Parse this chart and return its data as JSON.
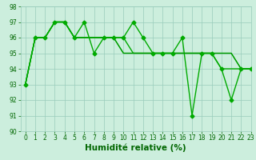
{
  "series": [
    {
      "x": [
        0,
        1,
        2,
        3,
        4,
        5,
        6,
        7,
        8,
        9,
        10,
        11,
        12,
        13,
        14,
        15,
        16,
        17,
        18,
        19,
        20,
        21,
        22,
        23
      ],
      "y": [
        93,
        96,
        96,
        97,
        97,
        96,
        97,
        95,
        96,
        96,
        96,
        97,
        96,
        95,
        95,
        95,
        96,
        91,
        95,
        95,
        94,
        92,
        94,
        94
      ],
      "color": "#00aa00",
      "marker": "D",
      "markersize": 2.5,
      "linewidth": 1.0
    },
    {
      "x": [
        0,
        1,
        2,
        3,
        4,
        5,
        6,
        7,
        8,
        9,
        10,
        11,
        12,
        13,
        14,
        15,
        16,
        17,
        18,
        19,
        20,
        21,
        22,
        23
      ],
      "y": [
        93,
        96,
        96,
        97,
        97,
        96,
        96,
        96,
        96,
        96,
        96,
        95,
        95,
        95,
        95,
        95,
        95,
        95,
        95,
        95,
        94,
        94,
        94,
        94
      ],
      "color": "#00aa00",
      "marker": null,
      "markersize": 0,
      "linewidth": 1.0
    },
    {
      "x": [
        0,
        1,
        2,
        3,
        4,
        5,
        6,
        7,
        8,
        9,
        10,
        11,
        12,
        13,
        14,
        15,
        16,
        17,
        18,
        19,
        20,
        21,
        22,
        23
      ],
      "y": [
        93,
        96,
        96,
        97,
        97,
        96,
        96,
        96,
        96,
        96,
        95,
        95,
        95,
        95,
        95,
        95,
        95,
        95,
        95,
        95,
        95,
        95,
        94,
        94
      ],
      "color": "#00bb00",
      "marker": null,
      "markersize": 0,
      "linewidth": 0.9
    },
    {
      "x": [
        0,
        1,
        2,
        3,
        4,
        5,
        6,
        7,
        8,
        9,
        10,
        11,
        12,
        13,
        14,
        15,
        16,
        17,
        18,
        19,
        20,
        21,
        22,
        23
      ],
      "y": [
        93,
        96,
        96,
        97,
        97,
        96,
        96,
        96,
        96,
        96,
        95,
        95,
        95,
        95,
        95,
        95,
        95,
        95,
        95,
        95,
        95,
        95,
        94,
        94
      ],
      "color": "#009900",
      "marker": null,
      "markersize": 0,
      "linewidth": 0.9
    }
  ],
  "xlim": [
    -0.5,
    23
  ],
  "ylim": [
    90,
    98
  ],
  "xticks": [
    0,
    1,
    2,
    3,
    4,
    5,
    6,
    7,
    8,
    9,
    10,
    11,
    12,
    13,
    14,
    15,
    16,
    17,
    18,
    19,
    20,
    21,
    22,
    23
  ],
  "yticks": [
    90,
    91,
    92,
    93,
    94,
    95,
    96,
    97,
    98
  ],
  "xlabel": "Humidité relative (%)",
  "xlabel_color": "#006600",
  "background_color": "#cceedd",
  "grid_color": "#99ccbb",
  "tick_color": "#006600",
  "tick_fontsize": 5.5,
  "xlabel_fontsize": 7.5,
  "figwidth": 3.2,
  "figheight": 2.0,
  "dpi": 100
}
